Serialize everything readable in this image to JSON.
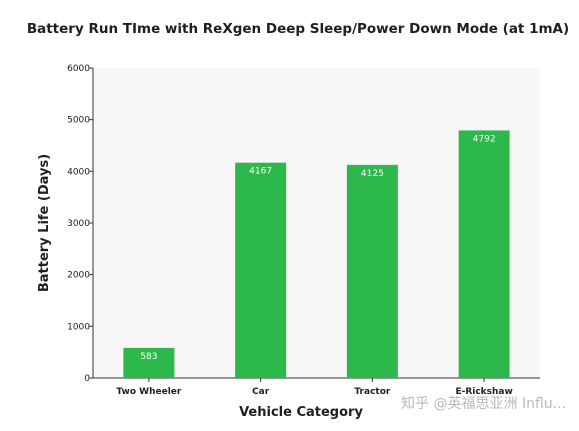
{
  "chart_data": {
    "type": "bar",
    "title": "Battery Run TIme with ReXgen Deep Sleep/Power Down Mode (at 1mA)",
    "xlabel": "Vehicle Category",
    "ylabel": "Battery Life (Days)",
    "categories": [
      "Two Wheeler",
      "Car",
      "Tractor",
      "E-Rickshaw"
    ],
    "values": [
      583,
      4167,
      4125,
      4792
    ],
    "data_labels": [
      "583",
      "4167",
      "4125",
      "4792"
    ],
    "ylim": [
      0,
      6000
    ],
    "yticks": [
      0,
      1000,
      2000,
      3000,
      4000,
      5000,
      6000
    ],
    "ytick_labels": [
      "0",
      "1000",
      "2000",
      "3000",
      "4000",
      "5000",
      "6000"
    ],
    "grid": false,
    "legend": "none",
    "bar_color": "#2db84b",
    "plot_background": "#f7f7f7"
  },
  "watermark": "知乎 @英福思亚洲 Influ..."
}
